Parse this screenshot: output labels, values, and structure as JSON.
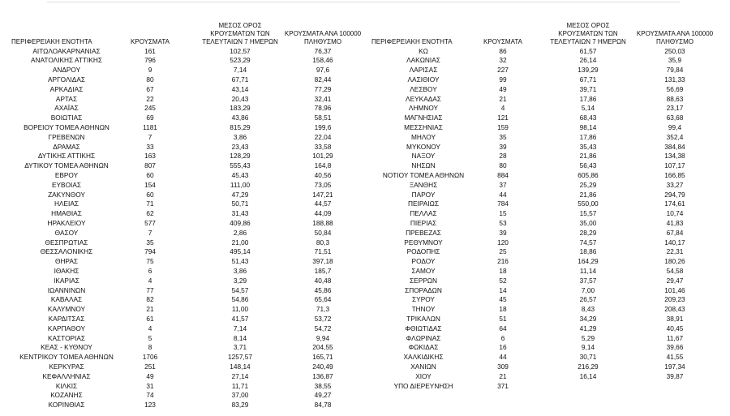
{
  "left": {
    "headers": [
      "ΠΕΡΙΦΕΡΕΙΑΚΗ ΕΝΟΤΗΤΑ",
      "ΚΡΟΥΣΜΑΤΑ",
      "ΜΕΣΟΣ ΟΡΟΣ ΚΡΟΥΣΜΑΤΩΝ ΤΩΝ ΤΕΛΕΥΤΑΙΩΝ 7 ΗΜΕΡΩΝ",
      "ΚΡΟΥΣΜΑΤΑ ΑΝΑ 100000 ΠΛΗΘΥΣΜΟ"
    ],
    "rows": [
      [
        "ΑΙΤΩΛΟΑΚΑΡΝΑΝΙΑΣ",
        "161",
        "102,57",
        "76,37"
      ],
      [
        "ΑΝΑΤΟΛΙΚΗΣ ΑΤΤΙΚΗΣ",
        "796",
        "523,29",
        "158,46"
      ],
      [
        "ΑΝΔΡΟΥ",
        "9",
        "7,14",
        "97,6"
      ],
      [
        "ΑΡΓΟΛΙΔΑΣ",
        "80",
        "67,71",
        "82,44"
      ],
      [
        "ΑΡΚΑΔΙΑΣ",
        "67",
        "43,14",
        "77,29"
      ],
      [
        "ΑΡΤΑΣ",
        "22",
        "20,43",
        "32,41"
      ],
      [
        "ΑΧΑΪΑΣ",
        "245",
        "183,29",
        "78,96"
      ],
      [
        "ΒΟΙΩΤΙΑΣ",
        "69",
        "43,86",
        "58,51"
      ],
      [
        "ΒΟΡΕΙΟΥ ΤΟΜΕΑ ΑΘΗΝΩΝ",
        "1181",
        "815,29",
        "199,6"
      ],
      [
        "ΓΡΕΒΕΝΩΝ",
        "7",
        "3,86",
        "22,04"
      ],
      [
        "ΔΡΑΜΑΣ",
        "33",
        "23,43",
        "33,58"
      ],
      [
        "ΔΥΤΙΚΗΣ ΑΤΤΙΚΗΣ",
        "163",
        "128,29",
        "101,29"
      ],
      [
        "ΔΥΤΙΚΟΥ ΤΟΜΕΑ ΑΘΗΝΩΝ",
        "807",
        "555,43",
        "164,8"
      ],
      [
        "ΕΒΡΟΥ",
        "60",
        "45,43",
        "40,56"
      ],
      [
        "ΕΥΒΟΙΑΣ",
        "154",
        "111,00",
        "73,05"
      ],
      [
        "ΖΑΚΥΝΘΟΥ",
        "60",
        "47,29",
        "147,21"
      ],
      [
        "ΗΛΕΙΑΣ",
        "71",
        "50,71",
        "44,57"
      ],
      [
        "ΗΜΑΘΙΑΣ",
        "62",
        "31,43",
        "44,09"
      ],
      [
        "ΗΡΑΚΛΕΙΟΥ",
        "577",
        "409,86",
        "188,88"
      ],
      [
        "ΘΑΣΟΥ",
        "7",
        "2,86",
        "50,84"
      ],
      [
        "ΘΕΣΠΡΩΤΙΑΣ",
        "35",
        "21,00",
        "80,3"
      ],
      [
        "ΘΕΣΣΑΛΟΝΙΚΗΣ",
        "794",
        "495,14",
        "71,51"
      ],
      [
        "ΘΗΡΑΣ",
        "75",
        "51,43",
        "397,18"
      ],
      [
        "ΙΘΑΚΗΣ",
        "6",
        "3,86",
        "185,7"
      ],
      [
        "ΙΚΑΡΙΑΣ",
        "4",
        "3,29",
        "40,48"
      ],
      [
        "ΙΩΑΝΝΙΝΩΝ",
        "77",
        "54,57",
        "45,86"
      ],
      [
        "ΚΑΒΑΛΑΣ",
        "82",
        "54,86",
        "65,64"
      ],
      [
        "ΚΑΛΥΜΝΟΥ",
        "21",
        "11,00",
        "71,3"
      ],
      [
        "ΚΑΡΔΙΤΣΑΣ",
        "61",
        "41,57",
        "53,72"
      ],
      [
        "ΚΑΡΠΑΘΟΥ",
        "4",
        "7,14",
        "54,72"
      ],
      [
        "ΚΑΣΤΟΡΙΑΣ",
        "5",
        "8,14",
        "9,94"
      ],
      [
        "ΚΕΑΣ - ΚΥΘΝΟΥ",
        "8",
        "3,71",
        "204,55"
      ],
      [
        "ΚΕΝΤΡΙΚΟΥ ΤΟΜΕΑ ΑΘΗΝΩΝ",
        "1706",
        "1257,57",
        "165,71"
      ],
      [
        "ΚΕΡΚΥΡΑΣ",
        "251",
        "148,14",
        "240,49"
      ],
      [
        "ΚΕΦΑΛΛΗΝΙΑΣ",
        "49",
        "27,14",
        "136,87"
      ],
      [
        "ΚΙΛΚΙΣ",
        "31",
        "11,71",
        "38,55"
      ],
      [
        "ΚΟΖΑΝΗΣ",
        "74",
        "37,00",
        "49,27"
      ],
      [
        "ΚΟΡΙΝΘΙΑΣ",
        "123",
        "83,29",
        "84,78"
      ]
    ]
  },
  "right": {
    "headers": [
      "ΠΕΡΙΦΕΡΕΙΑΚΗ ΕΝΟΤΗΤΑ",
      "ΚΡΟΥΣΜΑΤΑ",
      "ΜΕΣΟΣ ΟΡΟΣ ΚΡΟΥΣΜΑΤΩΝ ΤΩΝ ΤΕΛΕΥΤΑΙΩΝ 7 ΗΜΕΡΩΝ",
      "ΚΡΟΥΣΜΑΤΑ ΑΝΑ 100000 ΠΛΗΘΥΣΜΟ"
    ],
    "rows": [
      [
        "ΚΩ",
        "86",
        "61,57",
        "250,03"
      ],
      [
        "ΛΑΚΩΝΙΑΣ",
        "32",
        "26,14",
        "35,9"
      ],
      [
        "ΛΑΡΙΣΑΣ",
        "227",
        "139,29",
        "79,84"
      ],
      [
        "ΛΑΣΙΘΙΟΥ",
        "99",
        "67,71",
        "131,33"
      ],
      [
        "ΛΕΣΒΟΥ",
        "49",
        "39,71",
        "56,69"
      ],
      [
        "ΛΕΥΚΑΔΑΣ",
        "21",
        "17,86",
        "88,63"
      ],
      [
        "ΛΗΜΝΟΥ",
        "4",
        "5,14",
        "23,17"
      ],
      [
        "ΜΑΓΝΗΣΙΑΣ",
        "121",
        "68,43",
        "63,68"
      ],
      [
        "ΜΕΣΣΗΝΙΑΣ",
        "159",
        "98,14",
        "99,4"
      ],
      [
        "ΜΗΛΟΥ",
        "35",
        "17,86",
        "352,4"
      ],
      [
        "ΜΥΚΟΝΟΥ",
        "39",
        "35,43",
        "384,84"
      ],
      [
        "ΝΑΞΟΥ",
        "28",
        "21,86",
        "134,38"
      ],
      [
        "ΝΗΣΩΝ",
        "80",
        "56,43",
        "107,17"
      ],
      [
        "ΝΟΤΙΟΥ ΤΟΜΕΑ ΑΘΗΝΩΝ",
        "884",
        "605,86",
        "166,85"
      ],
      [
        "ΞΑΝΘΗΣ",
        "37",
        "25,29",
        "33,27"
      ],
      [
        "ΠΑΡΟΥ",
        "44",
        "21,86",
        "294,79"
      ],
      [
        "ΠΕΙΡΑΙΩΣ",
        "784",
        "550,00",
        "174,61"
      ],
      [
        "ΠΕΛΛΑΣ",
        "15",
        "15,57",
        "10,74"
      ],
      [
        "ΠΙΕΡΙΑΣ",
        "53",
        "35,00",
        "41,83"
      ],
      [
        "ΠΡΕΒΕΖΑΣ",
        "39",
        "28,29",
        "67,84"
      ],
      [
        "ΡΕΘΥΜΝΟΥ",
        "120",
        "74,57",
        "140,17"
      ],
      [
        "ΡΟΔΟΠΗΣ",
        "25",
        "18,86",
        "22,31"
      ],
      [
        "ΡΟΔΟΥ",
        "216",
        "164,29",
        "180,26"
      ],
      [
        "ΣΑΜΟΥ",
        "18",
        "11,14",
        "54,58"
      ],
      [
        "ΣΕΡΡΩΝ",
        "52",
        "37,57",
        "29,47"
      ],
      [
        "ΣΠΟΡΑΔΩΝ",
        "14",
        "7,00",
        "101,46"
      ],
      [
        "ΣΥΡΟΥ",
        "45",
        "26,57",
        "209,23"
      ],
      [
        "ΤΗΝΟΥ",
        "18",
        "8,43",
        "208,43"
      ],
      [
        "ΤΡΙΚΑΛΩΝ",
        "51",
        "34,29",
        "38,91"
      ],
      [
        "ΦΘΙΩΤΙΔΑΣ",
        "64",
        "41,29",
        "40,45"
      ],
      [
        "ΦΛΩΡΙΝΑΣ",
        "6",
        "5,29",
        "11,67"
      ],
      [
        "ΦΩΚΙΔΑΣ",
        "16",
        "9,14",
        "39,66"
      ],
      [
        "ΧΑΛΚΙΔΙΚΗΣ",
        "44",
        "30,71",
        "41,55"
      ],
      [
        "ΧΑΝΙΩΝ",
        "309",
        "216,29",
        "197,34"
      ],
      [
        "ΧΙΟΥ",
        "21",
        "16,14",
        "39,87"
      ],
      [
        "ΥΠΟ ΔΙΕΡΕΥΝΗΣΗ",
        "371"
      ]
    ]
  }
}
